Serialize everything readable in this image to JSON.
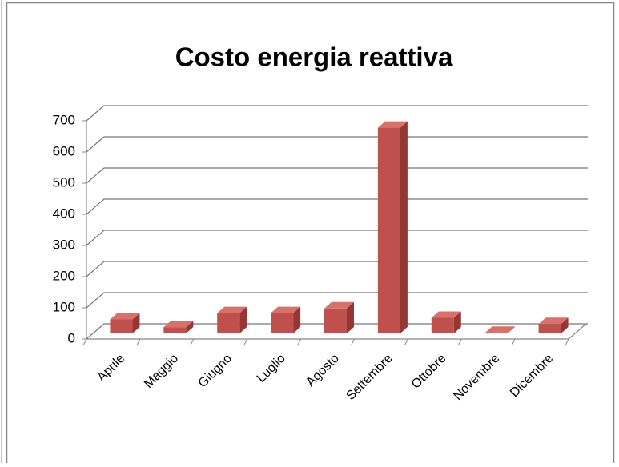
{
  "chart_data": {
    "type": "bar3d",
    "title": "Costo energia reattiva",
    "categories": [
      "Aprile",
      "Maggio",
      "Giugno",
      "Luglio",
      "Agosto",
      "Settembre",
      "Ottobre",
      "Novembre",
      "Dicembre"
    ],
    "values": [
      45,
      20,
      65,
      65,
      80,
      660,
      50,
      2,
      30
    ],
    "color": "#c0504d",
    "ylim": [
      0,
      700
    ],
    "yticks": [
      0,
      100,
      200,
      300,
      400,
      500,
      600,
      700
    ],
    "grid": true
  }
}
